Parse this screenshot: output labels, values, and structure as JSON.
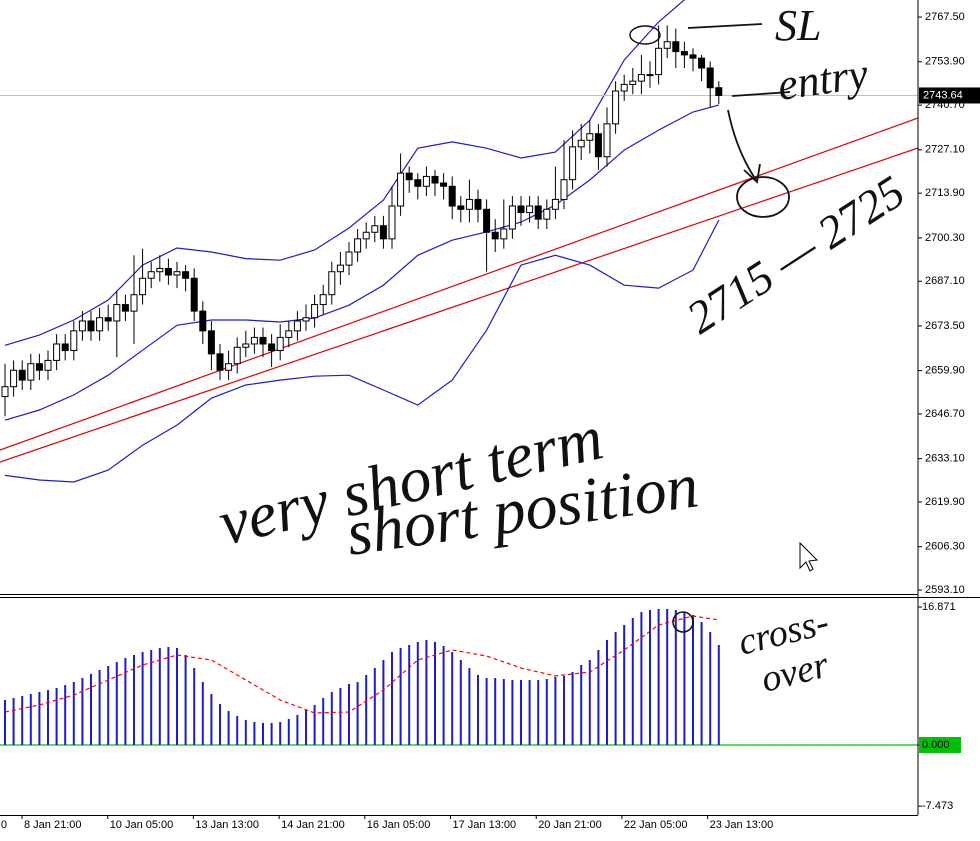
{
  "chart_data": {
    "type": "candlestick",
    "time_labels": [
      "0",
      "8 Jan 21:00",
      "10 Jan 05:00",
      "13 Jan 13:00",
      "14 Jan 21:00",
      "16 Jan 05:00",
      "17 Jan 13:00",
      "20 Jan 21:00",
      "22 Jan 05:00",
      "23 Jan 13:00"
    ],
    "open": [
      2652,
      2655,
      2660,
      2657,
      2662,
      2660,
      2663,
      2668,
      2666,
      2672,
      2675,
      2672,
      2676,
      2675,
      2680,
      2678,
      2683,
      2688,
      2690,
      2691,
      2689,
      2690,
      2688,
      2678,
      2672,
      2665,
      2660,
      2662,
      2667,
      2668,
      2670,
      2668,
      2666,
      2670,
      2672,
      2675,
      2676,
      2680,
      2683,
      2690,
      2692,
      2696,
      2700,
      2702,
      2704,
      2700,
      2710,
      2720,
      2718,
      2716,
      2719,
      2717,
      2716,
      2710,
      2709,
      2712,
      2709,
      2702,
      2700,
      2703,
      2710,
      2708,
      2710,
      2706,
      2709,
      2712,
      2718,
      2728,
      2730,
      2732,
      2725,
      2735,
      2745,
      2747,
      2748,
      2750,
      2750,
      2758,
      2760,
      2757,
      2756,
      2755,
      2752,
      2746
    ],
    "high": [
      2662,
      2663,
      2663,
      2665,
      2665,
      2666,
      2671,
      2671,
      2675,
      2678,
      2678,
      2679,
      2680,
      2684,
      2683,
      2695,
      2697,
      2693,
      2695,
      2694,
      2693,
      2692,
      2691,
      2681,
      2675,
      2668,
      2666,
      2670,
      2672,
      2673,
      2673,
      2671,
      2674,
      2675,
      2678,
      2680,
      2683,
      2686,
      2693,
      2696,
      2699,
      2703,
      2705,
      2707,
      2707,
      2716,
      2726,
      2722,
      2720,
      2722,
      2721,
      2720,
      2719,
      2713,
      2718,
      2715,
      2712,
      2706,
      2712,
      2713,
      2713,
      2713,
      2713,
      2712,
      2722,
      2730,
      2733,
      2735,
      2736,
      2735,
      2740,
      2748,
      2750,
      2752,
      2756,
      2754,
      2765,
      2765,
      2764,
      2760,
      2758,
      2756,
      2754,
      2748
    ],
    "low": [
      2646,
      2652,
      2654,
      2654,
      2657,
      2657,
      2660,
      2663,
      2663,
      2669,
      2669,
      2669,
      2672,
      2664,
      2675,
      2668,
      2680,
      2685,
      2687,
      2686,
      2685,
      2684,
      2675,
      2668,
      2660,
      2657,
      2657,
      2659,
      2664,
      2665,
      2664,
      2661,
      2663,
      2667,
      2669,
      2672,
      2673,
      2677,
      2680,
      2686,
      2689,
      2693,
      2697,
      2699,
      2697,
      2697,
      2707,
      2714,
      2712,
      2713,
      2713,
      2712,
      2706,
      2705,
      2705,
      2705,
      2690,
      2696,
      2697,
      2700,
      2704,
      2705,
      2703,
      2703,
      2706,
      2709,
      2715,
      2724,
      2726,
      2721,
      2722,
      2732,
      2742,
      2744,
      2744,
      2746,
      2747,
      2755,
      2752,
      2752,
      2751,
      2748,
      2740,
      2741
    ],
    "close": [
      2655,
      2660,
      2657,
      2662,
      2660,
      2663,
      2668,
      2666,
      2672,
      2675,
      2672,
      2676,
      2675,
      2680,
      2678,
      2683,
      2688,
      2690,
      2691,
      2689,
      2690,
      2688,
      2678,
      2672,
      2665,
      2660,
      2662,
      2667,
      2668,
      2670,
      2668,
      2666,
      2670,
      2672,
      2675,
      2676,
      2680,
      2683,
      2690,
      2692,
      2696,
      2700,
      2702,
      2704,
      2700,
      2710,
      2720,
      2718,
      2716,
      2719,
      2717,
      2716,
      2710,
      2709,
      2712,
      2709,
      2702,
      2700,
      2703,
      2710,
      2708,
      2710,
      2706,
      2709,
      2712,
      2718,
      2728,
      2730,
      2732,
      2725,
      2735,
      2745,
      2747,
      2748,
      2750,
      2750,
      2758,
      2760,
      2757,
      2756,
      2755,
      2752,
      2746,
      2743.64
    ],
    "up_color": "#ffffff",
    "down_color": "#000000",
    "ylim": [
      2591.9,
      2772.7
    ],
    "yticks": [
      {
        "value": 2767.5,
        "label": "2767.50"
      },
      {
        "value": 2753.9,
        "label": "2753.90"
      },
      {
        "value": 2740.7,
        "label": "2740.70"
      },
      {
        "value": 2727.1,
        "label": "2727.10"
      },
      {
        "value": 2713.9,
        "label": "2713.90"
      },
      {
        "value": 2700.3,
        "label": "2700.30"
      },
      {
        "value": 2687.1,
        "label": "2687.10"
      },
      {
        "value": 2673.5,
        "label": "2673.50"
      },
      {
        "value": 2659.9,
        "label": "2659.90"
      },
      {
        "value": 2646.7,
        "label": "2646.70"
      },
      {
        "value": 2633.1,
        "label": "2633.10"
      },
      {
        "value": 2619.9,
        "label": "2619.90"
      },
      {
        "value": 2606.3,
        "label": "2606.30"
      },
      {
        "value": 2593.1,
        "label": "2593.10"
      }
    ],
    "last_price": 2743.64,
    "bollinger": {
      "color": "#1c1ccc",
      "x": [
        0,
        4,
        8,
        12,
        16,
        20,
        24,
        28,
        32,
        36,
        40,
        44,
        48,
        52,
        56,
        60,
        64,
        68,
        72,
        76,
        80,
        83
      ],
      "upper": [
        2667.6,
        2670.7,
        2675.3,
        2681.4,
        2692,
        2697.2,
        2696,
        2694,
        2693.5,
        2696.6,
        2703.3,
        2711.8,
        2727.6,
        2729.5,
        2727.6,
        2724.6,
        2726.4,
        2736.1,
        2754.4,
        2766,
        2775,
        2779
      ],
      "middle": [
        2644.8,
        2647.9,
        2652.5,
        2658.5,
        2666.1,
        2673.7,
        2675.3,
        2675.3,
        2674.7,
        2675.9,
        2679.8,
        2685.9,
        2695,
        2699.6,
        2702.1,
        2705.1,
        2710.3,
        2717.9,
        2727,
        2733.1,
        2738.6,
        2740.7
      ],
      "lower": [
        2628,
        2626.6,
        2626,
        2629.6,
        2637.2,
        2643.3,
        2651.5,
        2655.5,
        2657,
        2658.2,
        2658.5,
        2654,
        2649.4,
        2657,
        2672.2,
        2692,
        2695,
        2692,
        2685.9,
        2685,
        2690.5,
        2705.7
      ]
    },
    "macd": {
      "color": "#1c1ccc",
      "values": [
        5.5,
        5.75,
        5.99,
        6.23,
        6.48,
        6.72,
        6.97,
        7.33,
        7.7,
        8.19,
        8.68,
        9.17,
        9.66,
        10.15,
        10.64,
        11,
        11.37,
        11.61,
        11.86,
        11.98,
        11.86,
        11,
        9.41,
        7.7,
        6.23,
        5.01,
        4.16,
        3.55,
        3.06,
        2.81,
        2.69,
        2.69,
        2.81,
        3.18,
        3.67,
        4.28,
        4.89,
        5.75,
        6.48,
        6.97,
        7.46,
        7.7,
        8.56,
        9.41,
        10.39,
        11.37,
        11.86,
        12.22,
        12.59,
        12.84,
        12.59,
        12.1,
        11.37,
        10.39,
        9.41,
        8.56,
        8.19,
        8.19,
        8.07,
        7.95,
        7.95,
        7.95,
        7.95,
        8.07,
        8.31,
        8.44,
        8.92,
        9.78,
        10.39,
        11.61,
        12.84,
        13.81,
        14.67,
        15.53,
        16.26,
        16.5,
        16.63,
        16.63,
        16.5,
        16.26,
        15.89,
        15.04,
        13.81,
        12.22
      ],
      "signal": {
        "color": "#ff0000",
        "x": [
          0,
          4,
          8,
          12,
          16,
          20,
          24,
          28,
          32,
          36,
          40,
          44,
          48,
          52,
          56,
          60,
          64,
          68,
          72,
          76,
          80,
          83
        ],
        "values": [
          4.03,
          4.89,
          6.11,
          7.95,
          9.78,
          11,
          10.39,
          7.95,
          5.5,
          3.91,
          4.03,
          6.72,
          10.39,
          11.61,
          10.88,
          9.41,
          8.44,
          8.92,
          11.61,
          14.67,
          15.77,
          15.28
        ]
      },
      "zero_color": "#00c000",
      "ylim": [
        -8.56,
        17.97
      ],
      "yticks": [
        16.871,
        {
          "value": 0,
          "label": "0.000"
        },
        -7.473
      ]
    },
    "annotations": {
      "sl": "SL",
      "entry": "entry",
      "range": "2715 — 2725",
      "line1": "very short term",
      "line2": "short position",
      "crossover": [
        "cross-",
        "over"
      ]
    }
  }
}
